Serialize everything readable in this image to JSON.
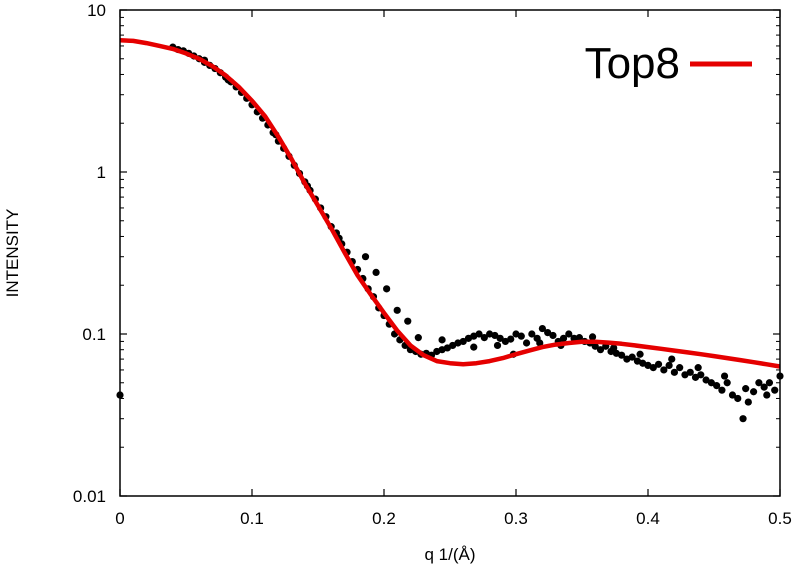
{
  "chart_data": {
    "type": "scatter",
    "xlabel": "q 1/(Å)",
    "ylabel": "INTENSITY",
    "xlim": [
      0,
      0.5
    ],
    "ylim": [
      0.01,
      10
    ],
    "y_scale": "log",
    "grid": false,
    "legend_position": "top-right",
    "x_ticks": [
      "0",
      "0.1",
      "0.2",
      "0.3",
      "0.4",
      "0.5"
    ],
    "y_ticks": [
      "10",
      "1",
      "0.1",
      "0.01"
    ],
    "x_tick_values": [
      0,
      0.1,
      0.2,
      0.3,
      0.4,
      0.5
    ],
    "y_tick_values": [
      10,
      1,
      0.1,
      0.01
    ],
    "series": [
      {
        "name": "",
        "kind": "scatter",
        "color": "#000000",
        "points": [
          [
            0.0,
            0.042
          ],
          [
            0.04,
            5.9
          ],
          [
            0.044,
            5.7
          ],
          [
            0.048,
            5.6
          ],
          [
            0.052,
            5.4
          ],
          [
            0.056,
            5.2
          ],
          [
            0.06,
            5.0
          ],
          [
            0.064,
            4.75
          ],
          [
            0.068,
            4.55
          ],
          [
            0.072,
            4.35
          ],
          [
            0.076,
            4.1
          ],
          [
            0.08,
            3.85
          ],
          [
            0.084,
            3.6
          ],
          [
            0.088,
            3.35
          ],
          [
            0.092,
            3.1
          ],
          [
            0.096,
            2.85
          ],
          [
            0.1,
            2.6
          ],
          [
            0.104,
            2.35
          ],
          [
            0.108,
            2.15
          ],
          [
            0.112,
            1.95
          ],
          [
            0.116,
            1.75
          ],
          [
            0.12,
            1.55
          ],
          [
            0.124,
            1.4
          ],
          [
            0.128,
            1.25
          ],
          [
            0.132,
            1.1
          ],
          [
            0.136,
            0.98
          ],
          [
            0.14,
            0.87
          ],
          [
            0.144,
            0.77
          ],
          [
            0.148,
            0.68
          ],
          [
            0.152,
            0.6
          ],
          [
            0.156,
            0.53
          ],
          [
            0.16,
            0.46
          ],
          [
            0.164,
            0.42
          ],
          [
            0.168,
            0.36
          ],
          [
            0.172,
            0.32
          ],
          [
            0.176,
            0.28
          ],
          [
            0.18,
            0.25
          ],
          [
            0.184,
            0.22
          ],
          [
            0.188,
            0.19
          ],
          [
            0.192,
            0.17
          ],
          [
            0.196,
            0.145
          ],
          [
            0.2,
            0.13
          ],
          [
            0.204,
            0.115
          ],
          [
            0.208,
            0.1
          ],
          [
            0.212,
            0.092
          ],
          [
            0.216,
            0.085
          ],
          [
            0.22,
            0.08
          ],
          [
            0.224,
            0.078
          ],
          [
            0.228,
            0.075
          ],
          [
            0.232,
            0.076
          ],
          [
            0.236,
            0.074
          ],
          [
            0.24,
            0.078
          ],
          [
            0.244,
            0.08
          ],
          [
            0.248,
            0.082
          ],
          [
            0.252,
            0.085
          ],
          [
            0.256,
            0.088
          ],
          [
            0.26,
            0.09
          ],
          [
            0.264,
            0.094
          ],
          [
            0.268,
            0.097
          ],
          [
            0.272,
            0.1
          ],
          [
            0.276,
            0.095
          ],
          [
            0.28,
            0.1
          ],
          [
            0.284,
            0.098
          ],
          [
            0.288,
            0.094
          ],
          [
            0.292,
            0.09
          ],
          [
            0.296,
            0.093
          ],
          [
            0.3,
            0.1
          ],
          [
            0.304,
            0.097
          ],
          [
            0.308,
            0.088
          ],
          [
            0.312,
            0.1
          ],
          [
            0.316,
            0.094
          ],
          [
            0.32,
            0.108
          ],
          [
            0.324,
            0.102
          ],
          [
            0.328,
            0.098
          ],
          [
            0.332,
            0.09
          ],
          [
            0.336,
            0.094
          ],
          [
            0.34,
            0.1
          ],
          [
            0.344,
            0.094
          ],
          [
            0.348,
            0.095
          ],
          [
            0.352,
            0.09
          ],
          [
            0.356,
            0.088
          ],
          [
            0.36,
            0.084
          ],
          [
            0.364,
            0.08
          ],
          [
            0.368,
            0.084
          ],
          [
            0.372,
            0.078
          ],
          [
            0.376,
            0.076
          ],
          [
            0.38,
            0.074
          ],
          [
            0.384,
            0.07
          ],
          [
            0.388,
            0.072
          ],
          [
            0.392,
            0.068
          ],
          [
            0.396,
            0.066
          ],
          [
            0.4,
            0.064
          ],
          [
            0.404,
            0.062
          ],
          [
            0.408,
            0.065
          ],
          [
            0.412,
            0.06
          ],
          [
            0.416,
            0.064
          ],
          [
            0.42,
            0.058
          ],
          [
            0.424,
            0.062
          ],
          [
            0.428,
            0.056
          ],
          [
            0.432,
            0.058
          ],
          [
            0.436,
            0.054
          ],
          [
            0.44,
            0.056
          ],
          [
            0.444,
            0.052
          ],
          [
            0.448,
            0.05
          ],
          [
            0.452,
            0.048
          ],
          [
            0.456,
            0.045
          ],
          [
            0.46,
            0.05
          ],
          [
            0.464,
            0.042
          ],
          [
            0.468,
            0.04
          ],
          [
            0.472,
            0.03
          ],
          [
            0.476,
            0.038
          ],
          [
            0.48,
            0.044
          ],
          [
            0.484,
            0.05
          ],
          [
            0.488,
            0.047
          ],
          [
            0.492,
            0.05
          ],
          [
            0.496,
            0.045
          ],
          [
            0.5,
            0.055
          ],
          [
            0.064,
            4.9
          ],
          [
            0.082,
            3.7
          ],
          [
            0.118,
            1.7
          ],
          [
            0.142,
            0.82
          ],
          [
            0.166,
            0.39
          ],
          [
            0.186,
            0.3
          ],
          [
            0.194,
            0.24
          ],
          [
            0.202,
            0.19
          ],
          [
            0.21,
            0.14
          ],
          [
            0.218,
            0.12
          ],
          [
            0.226,
            0.095
          ],
          [
            0.244,
            0.092
          ],
          [
            0.268,
            0.083
          ],
          [
            0.286,
            0.085
          ],
          [
            0.298,
            0.075
          ],
          [
            0.318,
            0.088
          ],
          [
            0.334,
            0.085
          ],
          [
            0.358,
            0.096
          ],
          [
            0.374,
            0.082
          ],
          [
            0.394,
            0.075
          ],
          [
            0.418,
            0.07
          ],
          [
            0.438,
            0.062
          ],
          [
            0.458,
            0.055
          ],
          [
            0.474,
            0.046
          ],
          [
            0.49,
            0.042
          ]
        ]
      },
      {
        "name": "Top8",
        "kind": "line",
        "color": "#e50000",
        "points": [
          [
            0.0,
            6.5
          ],
          [
            0.01,
            6.45
          ],
          [
            0.02,
            6.25
          ],
          [
            0.03,
            6.0
          ],
          [
            0.04,
            5.75
          ],
          [
            0.05,
            5.4
          ],
          [
            0.06,
            5.0
          ],
          [
            0.07,
            4.5
          ],
          [
            0.08,
            3.95
          ],
          [
            0.09,
            3.35
          ],
          [
            0.1,
            2.75
          ],
          [
            0.11,
            2.2
          ],
          [
            0.12,
            1.65
          ],
          [
            0.13,
            1.2
          ],
          [
            0.14,
            0.85
          ],
          [
            0.15,
            0.62
          ],
          [
            0.16,
            0.45
          ],
          [
            0.17,
            0.32
          ],
          [
            0.18,
            0.23
          ],
          [
            0.19,
            0.175
          ],
          [
            0.2,
            0.135
          ],
          [
            0.21,
            0.105
          ],
          [
            0.22,
            0.085
          ],
          [
            0.23,
            0.074
          ],
          [
            0.24,
            0.068
          ],
          [
            0.25,
            0.066
          ],
          [
            0.26,
            0.065
          ],
          [
            0.27,
            0.066
          ],
          [
            0.28,
            0.068
          ],
          [
            0.29,
            0.071
          ],
          [
            0.3,
            0.075
          ],
          [
            0.31,
            0.079
          ],
          [
            0.32,
            0.083
          ],
          [
            0.33,
            0.086
          ],
          [
            0.34,
            0.088
          ],
          [
            0.35,
            0.0895
          ],
          [
            0.36,
            0.0895
          ],
          [
            0.37,
            0.0885
          ],
          [
            0.38,
            0.087
          ],
          [
            0.39,
            0.085
          ],
          [
            0.4,
            0.083
          ],
          [
            0.41,
            0.081
          ],
          [
            0.42,
            0.079
          ],
          [
            0.43,
            0.077
          ],
          [
            0.44,
            0.075
          ],
          [
            0.45,
            0.073
          ],
          [
            0.46,
            0.071
          ],
          [
            0.47,
            0.069
          ],
          [
            0.48,
            0.067
          ],
          [
            0.49,
            0.065
          ],
          [
            0.5,
            0.063
          ]
        ]
      }
    ],
    "legend": [
      {
        "label": "Top8",
        "color": "#e50000"
      }
    ]
  }
}
